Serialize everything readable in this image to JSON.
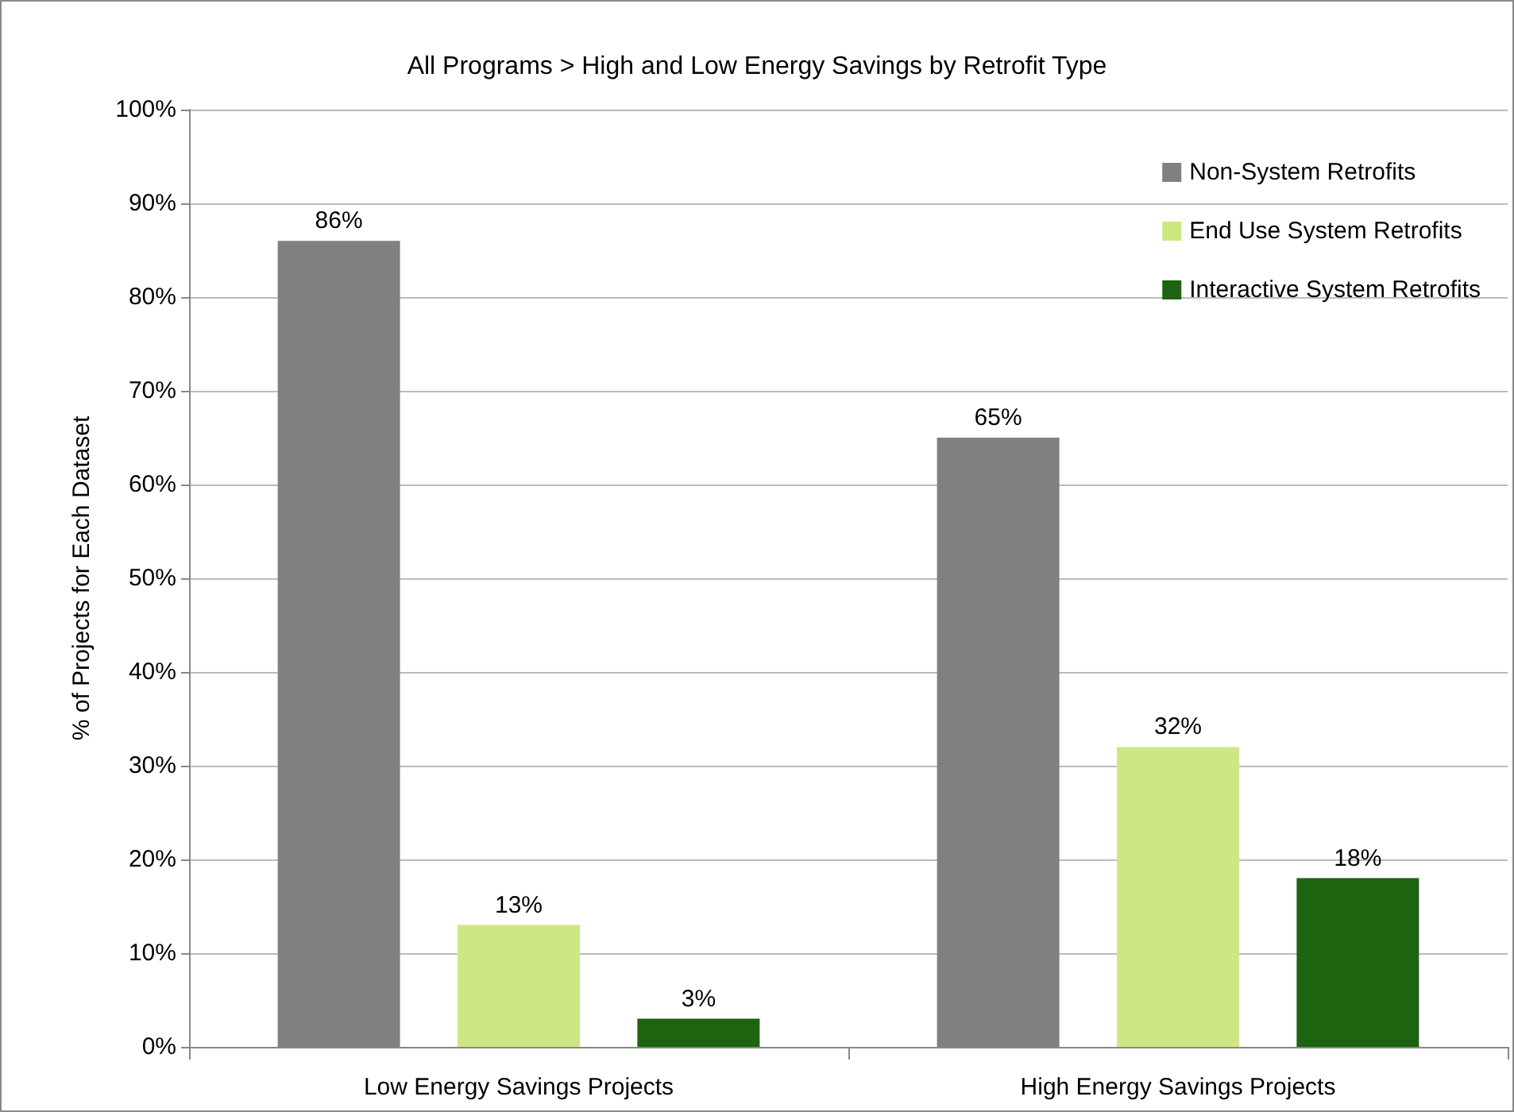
{
  "chart_data": {
    "type": "bar",
    "title": "All Programs > High and Low Energy Savings by Retrofit Type",
    "ylabel": "% of Projects for Each Dataset",
    "categories": [
      "Low Energy Savings Projects",
      "High Energy Savings Projects"
    ],
    "series": [
      {
        "name": "Non-System Retrofits",
        "color": "#808080",
        "values": [
          86,
          65
        ],
        "value_labels": [
          "86%",
          "65%"
        ]
      },
      {
        "name": "End Use System Retrofits",
        "color": "#cde882",
        "values": [
          13,
          32
        ],
        "value_labels": [
          "13%",
          "32%"
        ]
      },
      {
        "name": "Interactive System Retrofits",
        "color": "#1e6410",
        "values": [
          3,
          18
        ],
        "value_labels": [
          "3%",
          "18%"
        ]
      }
    ],
    "ylim": [
      0,
      100
    ],
    "yticks": [
      {
        "value": 0,
        "label": "0%"
      },
      {
        "value": 10,
        "label": "10%"
      },
      {
        "value": 20,
        "label": "20%"
      },
      {
        "value": 30,
        "label": "30%"
      },
      {
        "value": 40,
        "label": "40%"
      },
      {
        "value": 50,
        "label": "50%"
      },
      {
        "value": 60,
        "label": "60%"
      },
      {
        "value": 70,
        "label": "70%"
      },
      {
        "value": 80,
        "label": "80%"
      },
      {
        "value": 90,
        "label": "90%"
      },
      {
        "value": 100,
        "label": "100%"
      }
    ],
    "grid": "y",
    "legend": "top right"
  }
}
